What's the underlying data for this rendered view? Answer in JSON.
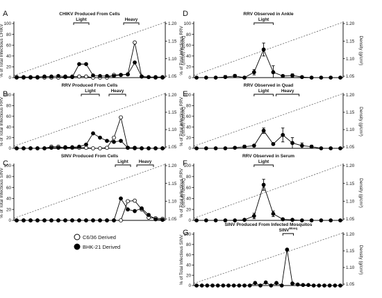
{
  "legend": [
    {
      "label": "C6/36 Derived",
      "fill": "white"
    },
    {
      "label": "BHK-21 Derived",
      "fill": "black"
    }
  ],
  "colors": {
    "stroke": "#000000",
    "density": "#555555",
    "background": "#ffffff"
  },
  "chart_data": [
    {
      "panel": "A",
      "type": "line",
      "title": "CHIKV Produced From Cells",
      "ylabel": "% of Total Infectious CHIKV",
      "y2label": "Density (g/cm³)",
      "yticks": [
        "0",
        "20",
        "40",
        "60",
        "80",
        "100"
      ],
      "ylim": [
        0,
        100
      ],
      "y2ticks": [
        "1.05",
        "1.10",
        "1.15",
        "1.20"
      ],
      "y2lim": [
        1.05,
        1.2
      ],
      "x": [
        1,
        2,
        3,
        4,
        5,
        6,
        7,
        8,
        9,
        10,
        11,
        12,
        13,
        14,
        15,
        16,
        17,
        18,
        19,
        20,
        21,
        22
      ],
      "series": [
        {
          "name": "C6/36 Derived",
          "marker": "open",
          "values": [
            0,
            0,
            0,
            0,
            0,
            0,
            0,
            1,
            2,
            2,
            2,
            0,
            0,
            0,
            5,
            5,
            6,
            65,
            2,
            1,
            0,
            0
          ]
        },
        {
          "name": "BHK-21 Derived",
          "marker": "filled",
          "values": [
            1,
            1,
            1,
            1,
            2,
            2,
            3,
            2,
            1,
            25,
            25,
            4,
            3,
            3,
            3,
            5,
            6,
            28,
            2,
            1,
            1,
            1
          ]
        }
      ],
      "annotations": [
        {
          "label": "Light",
          "x_range": [
            9.2,
            11.4
          ]
        },
        {
          "label": "Heavy",
          "x_range": [
            16.4,
            18.6
          ]
        }
      ]
    },
    {
      "panel": "B",
      "type": "line",
      "title": "RRV Produced From Cells",
      "ylabel": "% of Total Infectious RRV",
      "y2label": "Density (g/cm³)",
      "yticks": [
        "0",
        "20",
        "40",
        "60",
        "80",
        "100"
      ],
      "ylim": [
        0,
        100
      ],
      "y2ticks": [
        "1.05",
        "1.10",
        "1.15",
        "1.20"
      ],
      "y2lim": [
        1.05,
        1.2
      ],
      "x": [
        1,
        2,
        3,
        4,
        5,
        6,
        7,
        8,
        9,
        10,
        11,
        12,
        13,
        14,
        15,
        16,
        17,
        18,
        19,
        20,
        21,
        22
      ],
      "series": [
        {
          "name": "C6/36 Derived",
          "marker": "open",
          "values": [
            0,
            0,
            0,
            0,
            0,
            3,
            3,
            1,
            1,
            1,
            1,
            0,
            0,
            1,
            20,
            58,
            1,
            0,
            0,
            0,
            0,
            0
          ]
        },
        {
          "name": "BHK-21 Derived",
          "marker": "filled",
          "values": [
            0,
            0,
            0,
            0,
            0,
            1,
            1,
            2,
            2,
            3,
            7,
            28,
            20,
            14,
            12,
            14,
            1,
            1,
            0,
            0,
            0,
            0
          ]
        }
      ],
      "annotations": [
        {
          "label": "Light",
          "x_range": [
            10.3,
            12.9
          ]
        },
        {
          "label": "Heavy",
          "x_range": [
            14.3,
            16.7
          ]
        }
      ]
    },
    {
      "panel": "C",
      "type": "line",
      "title": "SINV Produced From Cells",
      "ylabel": "% of Total Infectious SINV",
      "y2label": "Density (g/cm³)",
      "yticks": [
        "0",
        "20",
        "40",
        "60",
        "80",
        "100"
      ],
      "ylim": [
        0,
        100
      ],
      "y2ticks": [
        "1.05",
        "1.10",
        "1.15",
        "1.20"
      ],
      "y2lim": [
        1.05,
        1.2
      ],
      "x": [
        1,
        2,
        3,
        4,
        5,
        6,
        7,
        8,
        9,
        10,
        11,
        12,
        13,
        14,
        15,
        16,
        17,
        18,
        19,
        20,
        21,
        22
      ],
      "series": [
        {
          "name": "C6/36 Derived",
          "marker": "open",
          "values": [
            0,
            0,
            0,
            0,
            0,
            0,
            0,
            0,
            0,
            0,
            0,
            0,
            0,
            0,
            0,
            0,
            35,
            36,
            20,
            5,
            4,
            3
          ]
        },
        {
          "name": "BHK-21 Derived",
          "marker": "filled",
          "values": [
            0,
            0,
            0,
            0,
            0,
            0,
            0,
            0,
            0,
            0,
            0,
            0,
            0,
            0,
            0,
            40,
            20,
            17,
            22,
            10,
            2,
            1
          ]
        }
      ],
      "annotations": [
        {
          "label": "Light",
          "x_range": [
            15.2,
            17.4
          ]
        },
        {
          "label": "Heavy",
          "x_range": [
            18.3,
            20.7
          ]
        }
      ]
    },
    {
      "panel": "D",
      "type": "line",
      "title": "RRV Observed in Ankle",
      "ylabel": "% of Total Infectious RRV",
      "y2label": "Density (g/cm³)",
      "yticks": [
        "0",
        "20",
        "40",
        "60",
        "80",
        "100"
      ],
      "ylim": [
        0,
        100
      ],
      "y2ticks": [
        "1.05",
        "1.10",
        "1.15",
        "1.20"
      ],
      "y2lim": [
        1.05,
        1.2
      ],
      "x": [
        1,
        2,
        3,
        4,
        5,
        6,
        7,
        8,
        9,
        10,
        11,
        12,
        13,
        14,
        15,
        16
      ],
      "series": [
        {
          "name": "BHK-21 Derived",
          "marker": "filled",
          "values": [
            0,
            0,
            0,
            1,
            3,
            0,
            10,
            52,
            10,
            3,
            4,
            1,
            0,
            0,
            0,
            0
          ],
          "errors": [
            0,
            0,
            0,
            3,
            3,
            0,
            5,
            12,
            12,
            2,
            3,
            1,
            0,
            0,
            0,
            0
          ]
        }
      ],
      "annotations": [
        {
          "label": "Light",
          "x_range": [
            7,
            9
          ]
        }
      ]
    },
    {
      "panel": "E",
      "type": "line",
      "title": "RRV Observed in Quad",
      "ylabel": "% of Total Infectious RRV",
      "y2label": "Density (g/cm³)",
      "yticks": [
        "0",
        "20",
        "40",
        "60",
        "80",
        "100"
      ],
      "ylim": [
        0,
        100
      ],
      "y2ticks": [
        "1.05",
        "1.10",
        "1.15",
        "1.20"
      ],
      "y2lim": [
        1.05,
        1.2
      ],
      "x": [
        1,
        2,
        3,
        4,
        5,
        6,
        7,
        8,
        9,
        10,
        11,
        12,
        13,
        14,
        15,
        16
      ],
      "series": [
        {
          "name": "BHK-21 Derived",
          "marker": "filled",
          "values": [
            0,
            0,
            0,
            0,
            1,
            3,
            5,
            33,
            8,
            25,
            10,
            5,
            3,
            0,
            0,
            0
          ],
          "errors": [
            0,
            0,
            0,
            0,
            1,
            3,
            2,
            5,
            2,
            13,
            10,
            5,
            3,
            0,
            0,
            0
          ]
        }
      ],
      "annotations": [
        {
          "label": "Light",
          "x_range": [
            7,
            9
          ]
        },
        {
          "label": "Heavy",
          "x_range": [
            9.3,
            11.7
          ]
        }
      ]
    },
    {
      "panel": "F",
      "type": "line",
      "title": "RRV Observed in Serum",
      "ylabel": "% of Total Infectious RRV",
      "y2label": "Density (g/cm³)",
      "yticks": [
        "0",
        "20",
        "40",
        "60",
        "80",
        "100"
      ],
      "ylim": [
        0,
        100
      ],
      "y2ticks": [
        "1.05",
        "1.10",
        "1.15",
        "1.20"
      ],
      "y2lim": [
        1.05,
        1.2
      ],
      "x": [
        1,
        2,
        3,
        4,
        5,
        6,
        7,
        8,
        9,
        10,
        11,
        12,
        13,
        14,
        15,
        16
      ],
      "series": [
        {
          "name": "BHK-21 Derived",
          "marker": "filled",
          "values": [
            0,
            0,
            0,
            0,
            0,
            1,
            8,
            65,
            12,
            2,
            1,
            0,
            0,
            0,
            0,
            0
          ],
          "errors": [
            0,
            0,
            0,
            0,
            0,
            1,
            5,
            10,
            5,
            2,
            1,
            0,
            0,
            0,
            0,
            0
          ]
        }
      ],
      "annotations": [
        {
          "label": "Light",
          "x_range": [
            7,
            9
          ]
        }
      ]
    },
    {
      "panel": "G",
      "type": "line",
      "title": "SINV Produced From Infected Mosquitos",
      "ylabel": "% of Total Infectious SINV",
      "y2label": "Density (g/cm³)",
      "yticks": [
        "0",
        "20",
        "40",
        "60",
        "80",
        "100"
      ],
      "ylim": [
        0,
        100
      ],
      "y2ticks": [
        "1.05",
        "1.10",
        "1.15",
        "1.20"
      ],
      "y2lim": [
        1.05,
        1.2
      ],
      "x": [
        1,
        2,
        3,
        4,
        5,
        6,
        7,
        8,
        9,
        10,
        11,
        12,
        13,
        14,
        15,
        16,
        17,
        18,
        19,
        20,
        21,
        22,
        23,
        24,
        25,
        26,
        27,
        28
      ],
      "series": [
        {
          "name": "BHK-21 Derived",
          "marker": "filled",
          "values": [
            0,
            0,
            0,
            0,
            0,
            0,
            0,
            0,
            0,
            0,
            0,
            5,
            0,
            6,
            0,
            5,
            0,
            70,
            4,
            2,
            1,
            1,
            0,
            0,
            0,
            0,
            0,
            0
          ]
        }
      ],
      "annotations": [
        {
          "label": "SINV",
          "superscript": "Mosq",
          "x_range": [
            17.2,
            19.2
          ]
        }
      ]
    }
  ]
}
